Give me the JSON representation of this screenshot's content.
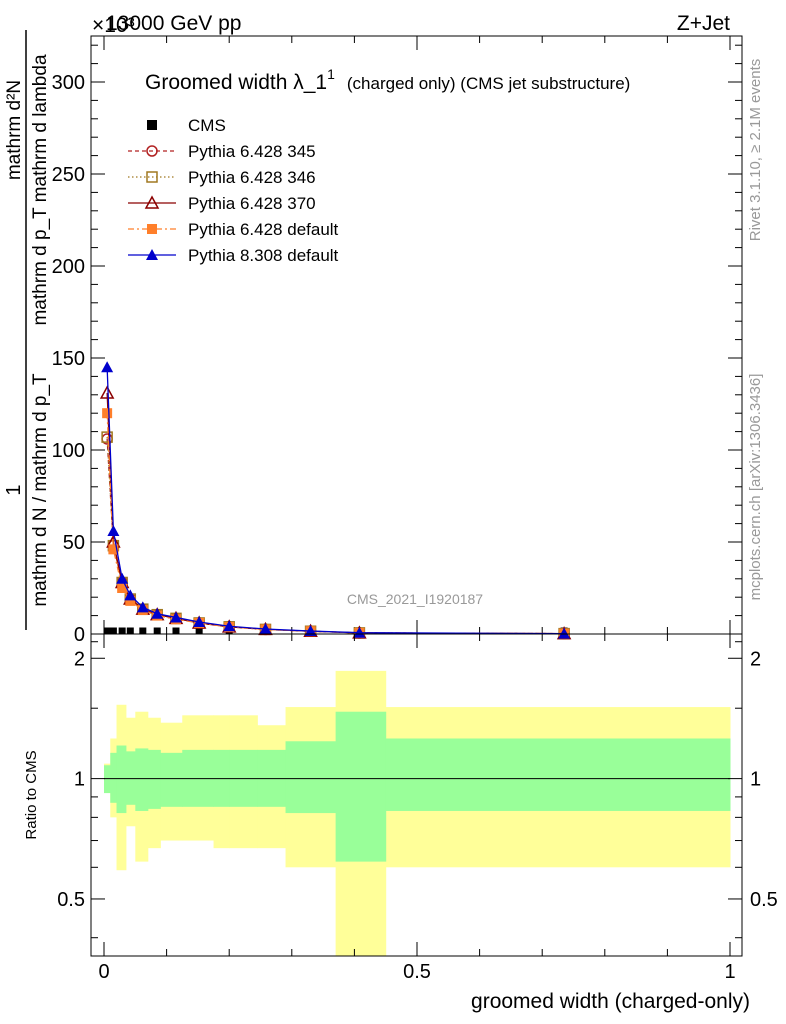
{
  "header": {
    "energy_label": "13000 GeV pp",
    "process_label": "Z+Jet",
    "axis_multiplier": "×10³",
    "rivet_label": "Rivet 3.1.10, ≥ 2.1M events",
    "site_label": "mcplots.cern.ch [arXiv:1306.3436]",
    "analysis_id": "CMS_2021_I1920187"
  },
  "chart_data": [
    {
      "type": "line",
      "panel": "main",
      "title_main": "Groomed width λ_1",
      "title_sup": "1",
      "title_suffix": "(charged only) (CMS jet substructure)",
      "ylabel_numer": "1",
      "ylabel_denom": "mathrm d N / mathrm d p_T",
      "ylabel_right_numer": "mathrm d²N",
      "ylabel_right_denom": "mathrm d p_T mathrm d lambda",
      "xlim": [
        0,
        1
      ],
      "ylim": [
        0,
        325
      ],
      "yticks": [
        0,
        50,
        100,
        150,
        200,
        250,
        300
      ],
      "legend_position": "top-left",
      "x": [
        0.005,
        0.015,
        0.029,
        0.042,
        0.062,
        0.085,
        0.115,
        0.152,
        0.2,
        0.258,
        0.33,
        0.408,
        0.735
      ],
      "series": [
        {
          "name": "CMS",
          "marker": "square-filled",
          "color": "#000000",
          "line": "none",
          "values": [
            0.4,
            0.4,
            0.4,
            0.4,
            0.4,
            0.4,
            0.4,
            0.4,
            0.4,
            0.4,
            0.4,
            0.3,
            0.1
          ]
        },
        {
          "name": "Pythia 6.428 345",
          "marker": "circle-open",
          "color": "#b22222",
          "line": "dashed",
          "values": [
            106,
            48,
            28,
            19,
            13.5,
            10.5,
            8.5,
            6,
            3.9,
            2.5,
            1.5,
            0.6,
            0.2
          ]
        },
        {
          "name": "Pythia 6.428 346",
          "marker": "square-open",
          "color": "#a07820",
          "line": "dotted",
          "values": [
            107,
            48,
            28,
            19,
            13.5,
            10.5,
            8.5,
            6,
            3.9,
            2.5,
            1.5,
            0.6,
            0.2
          ]
        },
        {
          "name": "Pythia 6.428 370",
          "marker": "triangle-open",
          "color": "#8b0000",
          "line": "solid",
          "values": [
            131,
            50,
            28,
            19,
            13.5,
            10.5,
            8.5,
            6,
            3.9,
            2.5,
            1.5,
            0.6,
            0.2
          ]
        },
        {
          "name": "Pythia 6.428 default",
          "marker": "square-filled",
          "color": "#ff7f2a",
          "line": "dashdot",
          "values": [
            120,
            46,
            25,
            18,
            13,
            10,
            8,
            6,
            3.8,
            2.5,
            1.5,
            0.6,
            0.2
          ]
        },
        {
          "name": "Pythia 8.308 default",
          "marker": "triangle-filled",
          "color": "#0000cc",
          "line": "solid",
          "values": [
            145,
            56,
            30,
            21,
            14.5,
            11,
            9,
            6.5,
            4.2,
            2.7,
            1.6,
            0.7,
            0.2
          ]
        }
      ]
    },
    {
      "type": "area",
      "panel": "ratio",
      "ylabel": "Ratio to CMS",
      "xlabel": "groomed width (charged-only)",
      "xlim": [
        0,
        1
      ],
      "ylim": [
        0.36,
        2.3
      ],
      "yticks": [
        0.5,
        1,
        2
      ],
      "xticks": [
        0,
        0.5,
        1
      ],
      "reference_line": 1,
      "bin_edges": [
        0,
        0.01,
        0.02,
        0.035,
        0.05,
        0.07,
        0.09,
        0.125,
        0.175,
        0.2,
        0.245,
        0.29,
        0.37,
        0.45,
        1.0
      ],
      "green_band": {
        "name": "stat",
        "color": "#99ff99",
        "lo": [
          0.92,
          0.87,
          0.82,
          0.86,
          0.83,
          0.84,
          0.85,
          0.85,
          0.85,
          0.85,
          0.85,
          0.82,
          0.62,
          0.83
        ],
        "hi": [
          1.08,
          1.16,
          1.21,
          1.17,
          1.19,
          1.18,
          1.16,
          1.18,
          1.18,
          1.18,
          1.18,
          1.24,
          1.47,
          1.26
        ]
      },
      "yellow_band": {
        "name": "syst",
        "color": "#ffff99",
        "lo": [
          0.94,
          0.8,
          0.59,
          0.76,
          0.62,
          0.67,
          0.7,
          0.7,
          0.67,
          0.67,
          0.67,
          0.6,
          0.36,
          0.6
        ],
        "hi": [
          1.09,
          1.26,
          1.53,
          1.42,
          1.47,
          1.42,
          1.38,
          1.44,
          1.44,
          1.44,
          1.36,
          1.51,
          1.86,
          1.51
        ]
      }
    }
  ]
}
